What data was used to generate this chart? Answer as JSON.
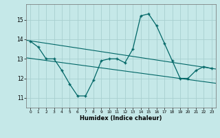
{
  "xlabel": "Humidex (Indice chaleur)",
  "background_color": "#c5e8e8",
  "grid_color": "#a8d0d0",
  "line_color": "#006666",
  "xlim": [
    -0.5,
    23.5
  ],
  "ylim": [
    10.5,
    15.8
  ],
  "yticks": [
    11,
    12,
    13,
    14,
    15
  ],
  "xticks": [
    0,
    1,
    2,
    3,
    4,
    5,
    6,
    7,
    8,
    9,
    10,
    11,
    12,
    13,
    14,
    15,
    16,
    17,
    18,
    19,
    20,
    21,
    22,
    23
  ],
  "main_x": [
    0,
    1,
    2,
    3,
    4,
    5,
    6,
    7,
    8,
    9,
    10,
    11,
    12,
    13,
    14,
    15,
    16,
    17,
    18,
    19,
    20,
    21,
    22,
    23
  ],
  "main_y": [
    13.9,
    13.6,
    13.0,
    13.0,
    12.4,
    11.7,
    11.1,
    11.1,
    11.9,
    12.9,
    13.0,
    13.0,
    12.8,
    13.5,
    15.2,
    15.3,
    14.7,
    13.8,
    12.9,
    12.0,
    12.0,
    12.4,
    12.6,
    12.5
  ],
  "trend1_x": [
    -0.5,
    23.5
  ],
  "trend1_y": [
    13.95,
    12.48
  ],
  "trend2_x": [
    -0.5,
    23.5
  ],
  "trend2_y": [
    13.05,
    11.75
  ],
  "figsize": [
    3.2,
    2.0
  ],
  "dpi": 100
}
